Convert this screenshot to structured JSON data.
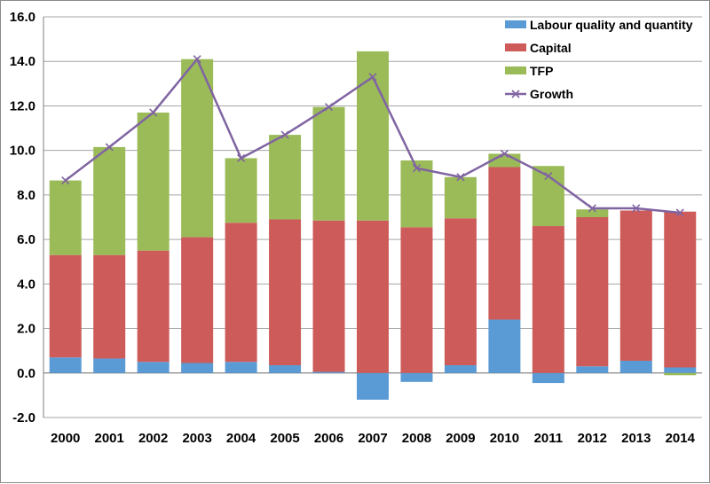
{
  "chart_data": {
    "type": "bar",
    "stacked": true,
    "categories": [
      "2000",
      "2001",
      "2002",
      "2003",
      "2004",
      "2005",
      "2006",
      "2007",
      "2008",
      "2009",
      "2010",
      "2011",
      "2012",
      "2013",
      "2014"
    ],
    "series": [
      {
        "name": "Labour quality and quantity",
        "kind": "bar",
        "color": "#5b9bd5",
        "values": [
          0.7,
          0.65,
          0.5,
          0.45,
          0.5,
          0.35,
          0.05,
          -1.2,
          -0.4,
          0.35,
          2.4,
          -0.45,
          0.3,
          0.55,
          0.25
        ]
      },
      {
        "name": "Capital",
        "kind": "bar",
        "color": "#cd5b59",
        "values": [
          4.6,
          4.65,
          5.0,
          5.65,
          6.25,
          6.55,
          6.8,
          6.85,
          6.55,
          6.6,
          6.85,
          6.6,
          6.7,
          6.75,
          7.0
        ]
      },
      {
        "name": "TFP",
        "kind": "bar",
        "color": "#9bbb59",
        "values": [
          3.35,
          4.85,
          6.2,
          8.0,
          2.9,
          3.8,
          5.1,
          7.6,
          3.0,
          1.85,
          0.6,
          2.7,
          0.35,
          0.0,
          -0.1
        ]
      },
      {
        "name": "Growth",
        "kind": "line",
        "color": "#8064a2",
        "values": [
          8.65,
          10.15,
          11.7,
          14.1,
          9.65,
          10.7,
          11.95,
          13.3,
          9.2,
          8.8,
          9.85,
          8.85,
          7.4,
          7.4,
          7.2
        ]
      }
    ],
    "ylim": [
      -2.0,
      16.0
    ],
    "yticks": [
      "-2.0",
      "0.0",
      "2.0",
      "4.0",
      "6.0",
      "8.0",
      "10.0",
      "12.0",
      "14.0",
      "16.0"
    ],
    "grid": true,
    "legend": "top-right"
  }
}
